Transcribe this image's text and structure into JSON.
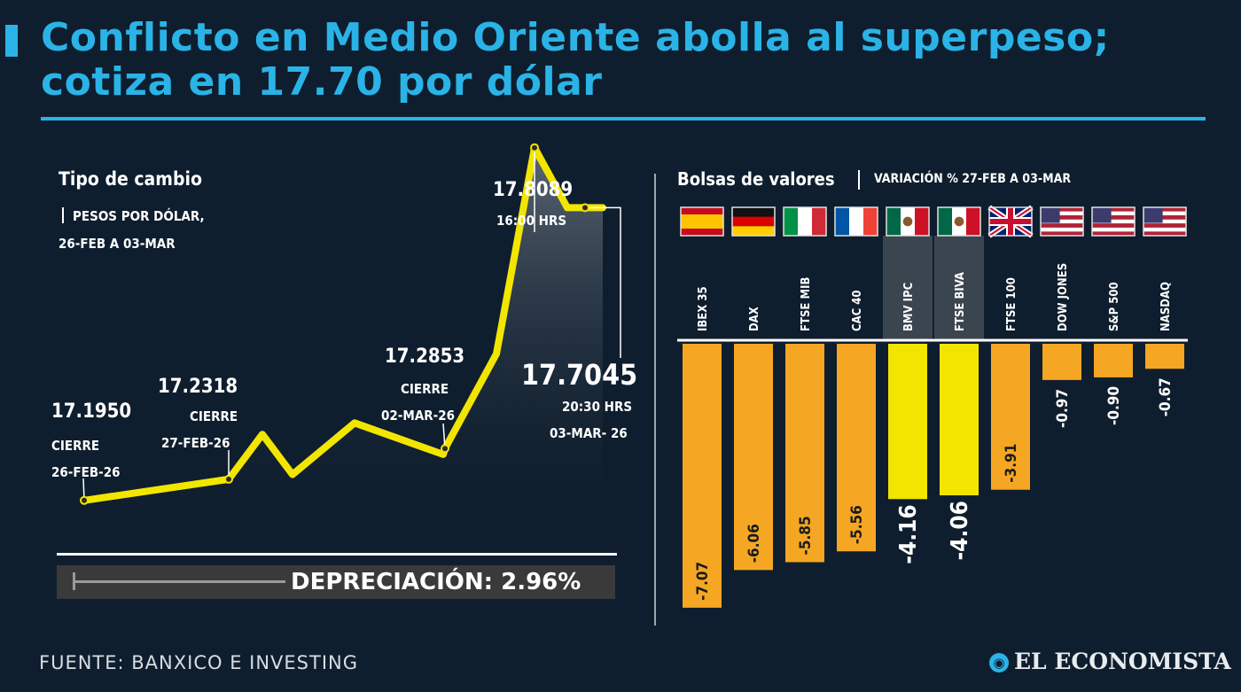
{
  "header": {
    "title_line1": "Conflicto en Medio Oriente abolla al superpeso;",
    "title_line2": "cotiza en 17.70 por dólar"
  },
  "colors": {
    "accent": "#2ab3e6",
    "background": "#0f1e2e",
    "line": "#f2e600",
    "bar_orange": "#f5a623",
    "bar_yellow": "#f2e600"
  },
  "exchange_panel": {
    "title": "Tipo de cambio",
    "subtitle_line1": "PESOS POR DÓLAR,",
    "subtitle_line2": "26-FEB A 03-MAR",
    "annotations": {
      "a1_value": "17.1950",
      "a1_note1": "CIERRE",
      "a1_note2": "26-FEB-26",
      "a2_value": "17.2318",
      "a2_note1": "CIERRE",
      "a2_note2": "27-FEB-26",
      "a3_value": "17.2853",
      "a3_note1": "CIERRE",
      "a3_note2": "02-MAR-26",
      "a4_value": "17.8089",
      "a4_note1": "16:00 HRS",
      "a5_value": "17.7045",
      "a5_note1": "20:30 HRS",
      "a5_note2": "03-MAR- 26"
    },
    "depreciation": "DEPRECIACIÓN: 2.96%"
  },
  "stocks_panel": {
    "title": "Bolsas de valores",
    "subtitle": "VARIACIÓN % 27-FEB A 03-MAR"
  },
  "footer": {
    "source": "FUENTE: BANXICO E INVESTING",
    "brand": "EL ECONOMISTA",
    "brand_icon": "globe-icon"
  },
  "chart_data": [
    {
      "type": "line",
      "title": "Tipo de cambio",
      "ylabel": "PESOS POR DÓLAR",
      "ylim": [
        17.15,
        17.85
      ],
      "series": [
        {
          "x": [
            0,
            1,
            2,
            3,
            4,
            5,
            6,
            7,
            8,
            9,
            10,
            11
          ],
          "y": [
            17.195,
            17.2318,
            17.31,
            17.24,
            17.33,
            17.275,
            17.2853,
            17.45,
            17.8089,
            17.7045,
            17.7045,
            17.7045
          ]
        }
      ],
      "labelled_points": [
        "17.1950",
        "17.2318",
        "17.2853",
        "17.8089",
        "17.7045"
      ]
    },
    {
      "type": "bar",
      "title": "Bolsas de valores",
      "subtitle": "VARIACIÓN % 27-FEB A 03-MAR",
      "categories": [
        "IBEX 35",
        "DAX",
        "FTSE MIB",
        "CAC 40",
        "BMV IPC",
        "FTSE BIVA",
        "FTSE 100",
        "DOW JONES",
        "S&P 500",
        "NASDAQ"
      ],
      "values": [
        -7.07,
        -6.06,
        -5.85,
        -5.56,
        -4.16,
        -4.06,
        -3.91,
        -0.97,
        -0.9,
        -0.67
      ],
      "value_labels": [
        "-7.07",
        "-6.06",
        "-5.85",
        "-5.56",
        "-4.16",
        "-4.06",
        "-3.91",
        "-0.97",
        "-0.90",
        "-0.67"
      ],
      "highlighted": [
        "BMV IPC",
        "FTSE BIVA"
      ],
      "flags": [
        "spain-flag-icon",
        "germany-flag-icon",
        "italy-flag-icon",
        "france-flag-icon",
        "mexico-flag-icon",
        "mexico-flag-icon",
        "uk-flag-icon",
        "usa-flag-icon",
        "usa-flag-icon",
        "usa-flag-icon"
      ],
      "ylim": [
        -7.5,
        0
      ]
    }
  ]
}
